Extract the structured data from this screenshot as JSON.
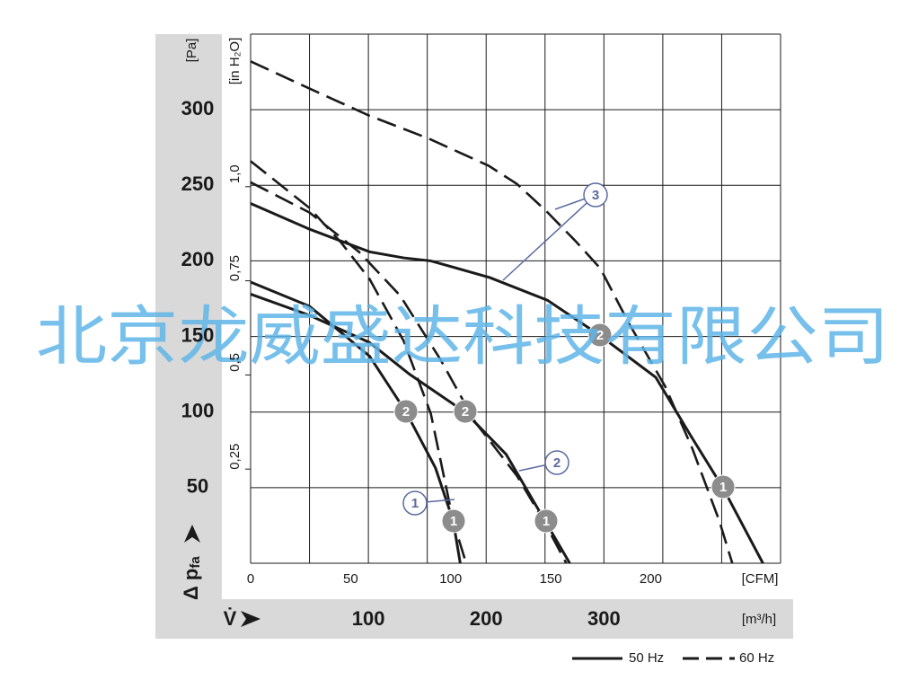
{
  "chart_data": {
    "type": "line",
    "xlabel": "V̇",
    "ylabel": {
      "main": "Δ p",
      "sub": "fa"
    },
    "xunit": "[m³/h]",
    "yunit": "[Pa]",
    "x2unit": "[CFM]",
    "y2unit": "[in H₂O]",
    "xlim": [
      0,
      450
    ],
    "xticks": [
      100,
      200,
      300
    ],
    "xgrid": [
      0,
      50,
      100,
      150,
      200,
      250,
      300,
      350,
      400,
      450
    ],
    "ylim": [
      0,
      350
    ],
    "yticks": [
      50,
      100,
      150,
      200,
      250,
      300
    ],
    "ygrid": [
      0,
      50,
      100,
      150,
      200,
      250,
      300,
      350
    ],
    "x2lim": [
      0,
      264.9
    ],
    "x2ticks": [
      0,
      50,
      100,
      150,
      200
    ],
    "y2lim": [
      0,
      1.405
    ],
    "y2ticks": [
      {
        "value": 0.25,
        "label": "0,25"
      },
      {
        "value": 0.5,
        "label": "0,5"
      },
      {
        "value": 0.75,
        "label": "0,75"
      },
      {
        "value": 1.0,
        "label": "1,0"
      }
    ],
    "series": [
      {
        "name": "50 Hz",
        "color": "#1a1a1a",
        "dash": false,
        "x": [
          0,
          50,
          101,
          132,
          157,
          172,
          178
        ],
        "values": [
          186,
          170,
          137,
          100,
          63,
          28,
          0
        ]
      },
      {
        "name": "50 Hz",
        "color": "#1a1a1a",
        "dash": false,
        "x": [
          0,
          50,
          101,
          135,
          182,
          217,
          250,
          271
        ],
        "values": [
          178,
          164,
          146,
          125,
          100,
          72,
          28,
          0
        ]
      },
      {
        "name": "50 Hz",
        "color": "#1a1a1a",
        "dash": false,
        "x": [
          0,
          50,
          101,
          130,
          153,
          203,
          252,
          296,
          344,
          374,
          401,
          435
        ],
        "values": [
          238,
          221,
          206,
          202,
          200,
          189,
          174,
          151,
          123,
          84,
          50,
          0
        ]
      },
      {
        "name": "60 Hz",
        "color": "#1a1a1a",
        "dash": true,
        "x": [
          0,
          50,
          77,
          101,
          130,
          153,
          172,
          183
        ],
        "values": [
          266,
          235,
          212,
          188,
          147,
          99,
          28,
          0
        ]
      },
      {
        "name": "60 Hz",
        "color": "#1a1a1a",
        "dash": true,
        "x": [
          0,
          50,
          92,
          127,
          161,
          191,
          226,
          249,
          268
        ],
        "values": [
          252,
          232,
          206,
          177,
          135,
          93,
          58,
          28,
          0
        ]
      },
      {
        "name": "60 Hz",
        "color": "#1a1a1a",
        "dash": true,
        "x": [
          0,
          50,
          101,
          151,
          202,
          226,
          251,
          276,
          297,
          321,
          352,
          375,
          398,
          409
        ],
        "values": [
          332,
          314,
          296,
          281,
          263,
          251,
          233,
          213,
          195,
          159,
          117,
          76,
          28,
          0
        ]
      }
    ],
    "annotations": [
      {
        "label": "2",
        "style": "filled"
      },
      {
        "label": "2",
        "style": "filled"
      },
      {
        "label": "2",
        "style": "filled"
      },
      {
        "label": "1",
        "style": "filled"
      },
      {
        "label": "1",
        "style": "filled"
      },
      {
        "label": "1",
        "style": "filled"
      },
      {
        "label": "3",
        "style": "outline"
      },
      {
        "label": "2",
        "style": "outline"
      },
      {
        "label": "1",
        "style": "outline"
      }
    ]
  },
  "watermark": "北京龙威盛达科技有限公司"
}
